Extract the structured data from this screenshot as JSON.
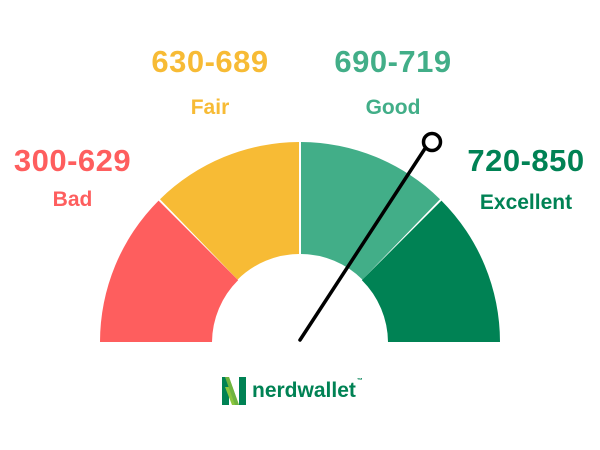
{
  "bands": [
    {
      "range": "300-629",
      "label": "Bad",
      "color": "#fe5e5e"
    },
    {
      "range": "630-689",
      "label": "Fair",
      "color": "#f7bb35"
    },
    {
      "range": "690-719",
      "label": "Good",
      "color": "#42ae88"
    },
    {
      "range": "720-850",
      "label": "Excellent",
      "color": "#008254"
    }
  ],
  "gauge": {
    "needle_color": "#000000",
    "icon": "gauge-needle-icon"
  },
  "brand": {
    "name": "nerdwallet",
    "trademark": "™",
    "color": "#008254",
    "icon": "nerdwallet-logo-icon"
  }
}
